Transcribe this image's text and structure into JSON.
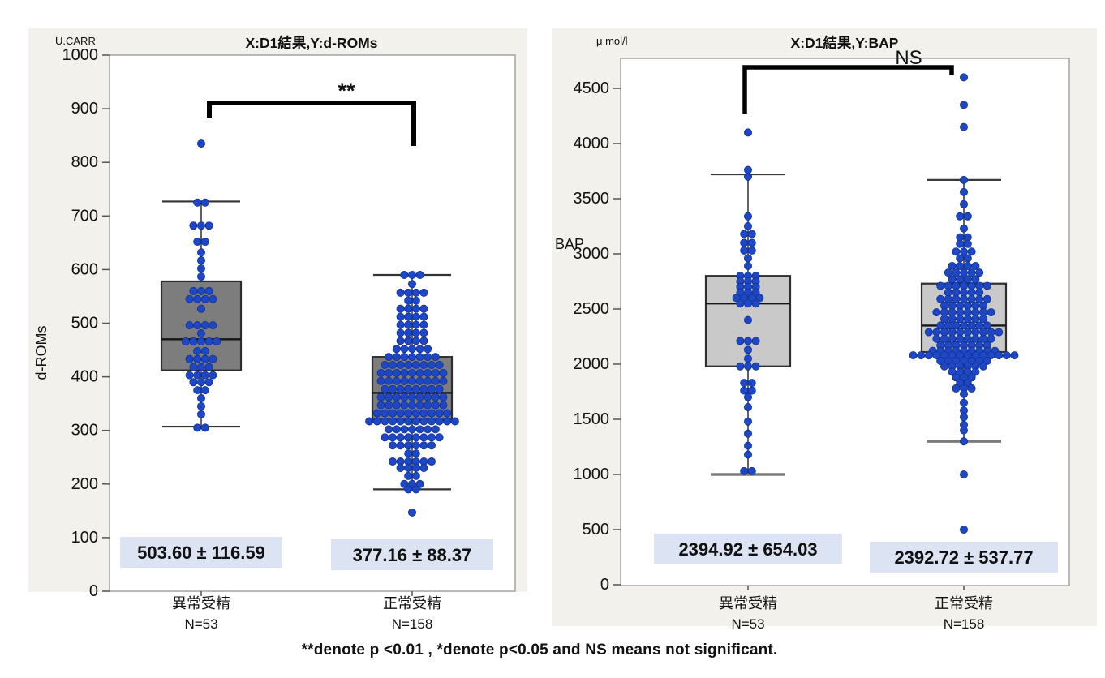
{
  "figure": {
    "caption": "**denote p <0.01 , *denote p<0.05 and NS means not significant.",
    "colors": {
      "panel_bg": "#f2f1ec",
      "plot_bg": "#ffffff",
      "frame": "#8f8f8f",
      "dot": "#1e47c8",
      "dot_stroke": "#123288",
      "box_border": "#2e2e2e",
      "median": "#161616",
      "mean_label_bg": "#dce3f2",
      "text": "#111111"
    }
  },
  "chart_data": [
    {
      "type": "boxplot-beeswarm",
      "title": "X:D1結果,Y:d-ROMs",
      "unit": "U.CARR",
      "ylabel": "d-ROMs",
      "ylim": [
        0,
        1000
      ],
      "yticks": [
        0,
        100,
        200,
        300,
        400,
        500,
        600,
        700,
        800,
        900,
        1000
      ],
      "box_fill": "#7d7d7d",
      "significance": "**",
      "groups": [
        {
          "label": "異常受精",
          "n_label": "N=53",
          "mean_label": "503.60 ± 116.59",
          "box": {
            "whisker_low": 307,
            "q1": 412,
            "median": 470,
            "q3": 578,
            "whisker_high": 727
          },
          "dots": [
            [
              835,
              1
            ],
            [
              725,
              2
            ],
            [
              682,
              3
            ],
            [
              652,
              2
            ],
            [
              632,
              1
            ],
            [
              617,
              1
            ],
            [
              602,
              1
            ],
            [
              587,
              1
            ],
            [
              560,
              3
            ],
            [
              545,
              4
            ],
            [
              527,
              1
            ],
            [
              496,
              4
            ],
            [
              481,
              1
            ],
            [
              466,
              5
            ],
            [
              448,
              2
            ],
            [
              433,
              4
            ],
            [
              418,
              3
            ],
            [
              403,
              4
            ],
            [
              390,
              3
            ],
            [
              375,
              2
            ],
            [
              360,
              1
            ],
            [
              345,
              1
            ],
            [
              330,
              1
            ],
            [
              305,
              2
            ]
          ]
        },
        {
          "label": "正常受精",
          "n_label": "N=158",
          "mean_label": "377.16 ± 88.37",
          "box": {
            "whisker_low": 190,
            "q1": 320,
            "median": 370,
            "q3": 437,
            "whisker_high": 590
          },
          "dots": [
            [
              590,
              3
            ],
            [
              573,
              1
            ],
            [
              557,
              4
            ],
            [
              542,
              2
            ],
            [
              527,
              4
            ],
            [
              512,
              4
            ],
            [
              497,
              4
            ],
            [
              482,
              4
            ],
            [
              467,
              4
            ],
            [
              452,
              5
            ],
            [
              437,
              7
            ],
            [
              422,
              8
            ],
            [
              407,
              9
            ],
            [
              392,
              9
            ],
            [
              377,
              8
            ],
            [
              362,
              9
            ],
            [
              347,
              9
            ],
            [
              332,
              10
            ],
            [
              317,
              12
            ],
            [
              302,
              7
            ],
            [
              287,
              8
            ],
            [
              272,
              6
            ],
            [
              257,
              2
            ],
            [
              242,
              6
            ],
            [
              230,
              4
            ],
            [
              215,
              2
            ],
            [
              200,
              3
            ],
            [
              190,
              2
            ],
            [
              147,
              1
            ]
          ]
        }
      ]
    },
    {
      "type": "boxplot-beeswarm",
      "title": "X:D1結果,Y:BAP",
      "unit": "μ mol/l",
      "ylabel": "BAP",
      "ylim": [
        0,
        4500
      ],
      "yticks": [
        0,
        500,
        1000,
        1500,
        2000,
        2500,
        3000,
        3500,
        4000,
        4500
      ],
      "box_fill": "#c9c9c9",
      "significance": "NS",
      "groups": [
        {
          "label": "異常受精",
          "n_label": "N=53",
          "mean_label": "2394.92 ± 654.03",
          "box": {
            "whisker_low": 1000,
            "q1": 1980,
            "median": 2550,
            "q3": 2800,
            "whisker_high": 3720
          },
          "dots": [
            [
              4100,
              1
            ],
            [
              3760,
              1
            ],
            [
              3700,
              1
            ],
            [
              3340,
              1
            ],
            [
              3250,
              1
            ],
            [
              3180,
              2
            ],
            [
              3100,
              2
            ],
            [
              3030,
              2
            ],
            [
              2960,
              1
            ],
            [
              2890,
              1
            ],
            [
              2800,
              3
            ],
            [
              2750,
              3
            ],
            [
              2700,
              3
            ],
            [
              2650,
              3
            ],
            [
              2600,
              4
            ],
            [
              2550,
              3
            ],
            [
              2400,
              1
            ],
            [
              2210,
              3
            ],
            [
              2130,
              1
            ],
            [
              2050,
              1
            ],
            [
              1980,
              3
            ],
            [
              1830,
              2
            ],
            [
              1760,
              2
            ],
            [
              1700,
              1
            ],
            [
              1610,
              1
            ],
            [
              1480,
              1
            ],
            [
              1370,
              1
            ],
            [
              1260,
              1
            ],
            [
              1180,
              1
            ],
            [
              1030,
              2
            ]
          ]
        },
        {
          "label": "正常受精",
          "n_label": "N=158",
          "mean_label": "2392.72 ± 537.77",
          "box": {
            "whisker_low": 1300,
            "q1": 2110,
            "median": 2350,
            "q3": 2730,
            "whisker_high": 3670
          },
          "dots": [
            [
              4600,
              1
            ],
            [
              4350,
              1
            ],
            [
              4150,
              1
            ],
            [
              3670,
              1
            ],
            [
              3560,
              1
            ],
            [
              3450,
              1
            ],
            [
              3340,
              2
            ],
            [
              3230,
              1
            ],
            [
              3150,
              2
            ],
            [
              3090,
              2
            ],
            [
              3020,
              3
            ],
            [
              2960,
              2
            ],
            [
              2890,
              4
            ],
            [
              2830,
              5
            ],
            [
              2770,
              4
            ],
            [
              2710,
              7
            ],
            [
              2650,
              5
            ],
            [
              2590,
              7
            ],
            [
              2530,
              6
            ],
            [
              2470,
              8
            ],
            [
              2410,
              6
            ],
            [
              2350,
              7
            ],
            [
              2290,
              10
            ],
            [
              2230,
              8
            ],
            [
              2170,
              7
            ],
            [
              2120,
              9
            ],
            [
              2080,
              14
            ],
            [
              2030,
              7
            ],
            [
              1980,
              6
            ],
            [
              1930,
              4
            ],
            [
              1880,
              3
            ],
            [
              1830,
              2
            ],
            [
              1780,
              3
            ],
            [
              1730,
              1
            ],
            [
              1650,
              1
            ],
            [
              1580,
              1
            ],
            [
              1520,
              1
            ],
            [
              1450,
              1
            ],
            [
              1400,
              1
            ],
            [
              1300,
              1
            ],
            [
              1000,
              1
            ],
            [
              500,
              1
            ]
          ]
        }
      ]
    }
  ]
}
